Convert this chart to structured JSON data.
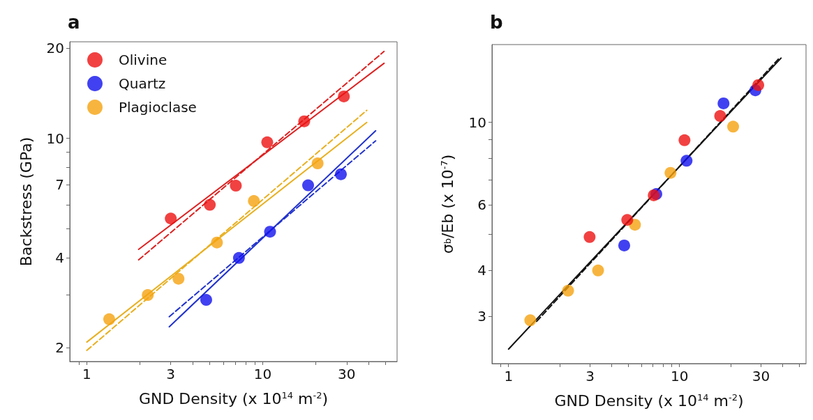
{
  "chart_data": [
    {
      "type": "scatter",
      "title": "a",
      "xlabel": "GND Density (x 10$^{14}$ m$^{-2}$)",
      "ylabel": "Backstress (GPa)",
      "log": "xy",
      "xlim": [
        0.8,
        58
      ],
      "ylim": [
        1.8,
        21
      ],
      "xticks": [
        {
          "value": 0.9,
          "label": null
        },
        1,
        {
          "value": 2,
          "label": null
        },
        3,
        {
          "value": 4,
          "label": null
        },
        {
          "value": 5,
          "label": null
        },
        {
          "value": 6,
          "label": null
        },
        {
          "value": 7,
          "label": null
        },
        {
          "value": 8,
          "label": null
        },
        {
          "value": 9,
          "label": null
        },
        10,
        {
          "value": 20,
          "label": null
        },
        30,
        {
          "value": 40,
          "label": null
        },
        {
          "value": 50,
          "label": null
        }
      ],
      "yticks": [
        2,
        {
          "value": 3,
          "label": null
        },
        4,
        {
          "value": 5,
          "label": null
        },
        {
          "value": 6,
          "label": null
        },
        7,
        {
          "value": 8,
          "label": null
        },
        {
          "value": 9,
          "label": null
        },
        10,
        20
      ],
      "legend": "top left",
      "marker": "circle",
      "series": [
        {
          "name": "Olivine",
          "color": "#ee1111",
          "x": [
            3,
            5,
            7.03,
            10.6,
            17.2,
            28.9
          ],
          "values": [
            5.4,
            6.0,
            6.95,
            9.7,
            11.4,
            13.8
          ]
        },
        {
          "name": "Quartz",
          "color": "#1111ee",
          "x": [
            4.77,
            7.32,
            11.0,
            18.1,
            27.8
          ],
          "values": [
            2.89,
            3.99,
            4.88,
            6.97,
            7.59
          ]
        },
        {
          "name": "Plagioclase",
          "color": "#f5a30f",
          "x": [
            1.34,
            2.22,
            3.32,
            5.49,
            8.9,
            20.5
          ],
          "values": [
            2.49,
            3.0,
            3.4,
            4.49,
            6.18,
            8.25
          ]
        },
        {
          "type": "line",
          "color": "#dd2222",
          "line_style": "solid",
          "marker": "none",
          "x": [
            1.97,
            48.9
          ],
          "values": [
            4.26,
            17.8
          ]
        },
        {
          "type": "line",
          "color": "#dd2222",
          "line_style": "dashed",
          "marker": "none",
          "x": [
            1.97,
            48.9
          ],
          "values": [
            3.93,
            19.5
          ]
        },
        {
          "type": "line",
          "color": "#e8b020",
          "line_style": "solid",
          "marker": "none",
          "x": [
            1,
            39
          ],
          "values": [
            2.09,
            11.3
          ]
        },
        {
          "type": "line",
          "color": "#e8b020",
          "line_style": "dashed",
          "marker": "none",
          "x": [
            1,
            39
          ],
          "values": [
            1.96,
            12.4
          ]
        },
        {
          "type": "line",
          "color": "#2233cc",
          "line_style": "solid",
          "marker": "none",
          "x": [
            2.94,
            43.8
          ],
          "values": [
            2.35,
            10.6
          ]
        },
        {
          "type": "line",
          "color": "#2233cc",
          "line_style": "dashed",
          "marker": "none",
          "x": [
            2.94,
            43.8
          ],
          "values": [
            2.54,
            9.81
          ]
        }
      ]
    },
    {
      "type": "scatter",
      "title": "b",
      "xlabel": "GND Density (x 10$^{14}$ m$^{-2}$)",
      "ylabel": "σ$_{b}$/Eb (x 10$^{-7}$)",
      "log": "xy",
      "xlim": [
        0.8,
        55
      ],
      "ylim": [
        2.24,
        16.2
      ],
      "xticks": [
        {
          "value": 0.9,
          "label": null
        },
        1,
        {
          "value": 2,
          "label": null
        },
        3,
        {
          "value": 4,
          "label": null
        },
        {
          "value": 5,
          "label": null
        },
        {
          "value": 6,
          "label": null
        },
        {
          "value": 7,
          "label": null
        },
        {
          "value": 8,
          "label": null
        },
        {
          "value": 9,
          "label": null
        },
        10,
        {
          "value": 20,
          "label": null
        },
        30,
        {
          "value": 40,
          "label": null
        },
        {
          "value": 50,
          "label": null
        }
      ],
      "yticks": [
        3,
        4,
        {
          "value": 5,
          "label": null
        },
        6,
        {
          "value": 7,
          "label": null
        },
        {
          "value": 8,
          "label": null
        },
        {
          "value": 9,
          "label": null
        },
        10
      ],
      "marker": "circle",
      "series": [
        {
          "color": "#ee1111",
          "x": [
            2.98,
            4.95,
            7.07,
            10.7,
            17.3,
            28.9
          ],
          "values": [
            4.91,
            5.46,
            6.36,
            8.95,
            10.4,
            12.6
          ]
        },
        {
          "color": "#1111ee",
          "x": [
            4.75,
            7.32,
            11.0,
            18.1,
            27.8
          ],
          "values": [
            4.66,
            6.41,
            7.88,
            11.25,
            12.2
          ]
        },
        {
          "color": "#f5a30f",
          "x": [
            1.34,
            2.23,
            3.34,
            5.49,
            8.86,
            20.6
          ],
          "values": [
            2.93,
            3.52,
            3.99,
            5.3,
            7.31,
            9.74
          ]
        },
        {
          "type": "line",
          "color": "#111111",
          "line_style": "solid",
          "marker": "none",
          "x": [
            1,
            39.3
          ],
          "values": [
            2.45,
            14.9
          ]
        },
        {
          "type": "line",
          "color": "#111111",
          "line_style": "dashed",
          "marker": "none",
          "x": [
            1.46,
            37.9
          ],
          "values": [
            2.91,
            14.8
          ]
        }
      ]
    }
  ]
}
